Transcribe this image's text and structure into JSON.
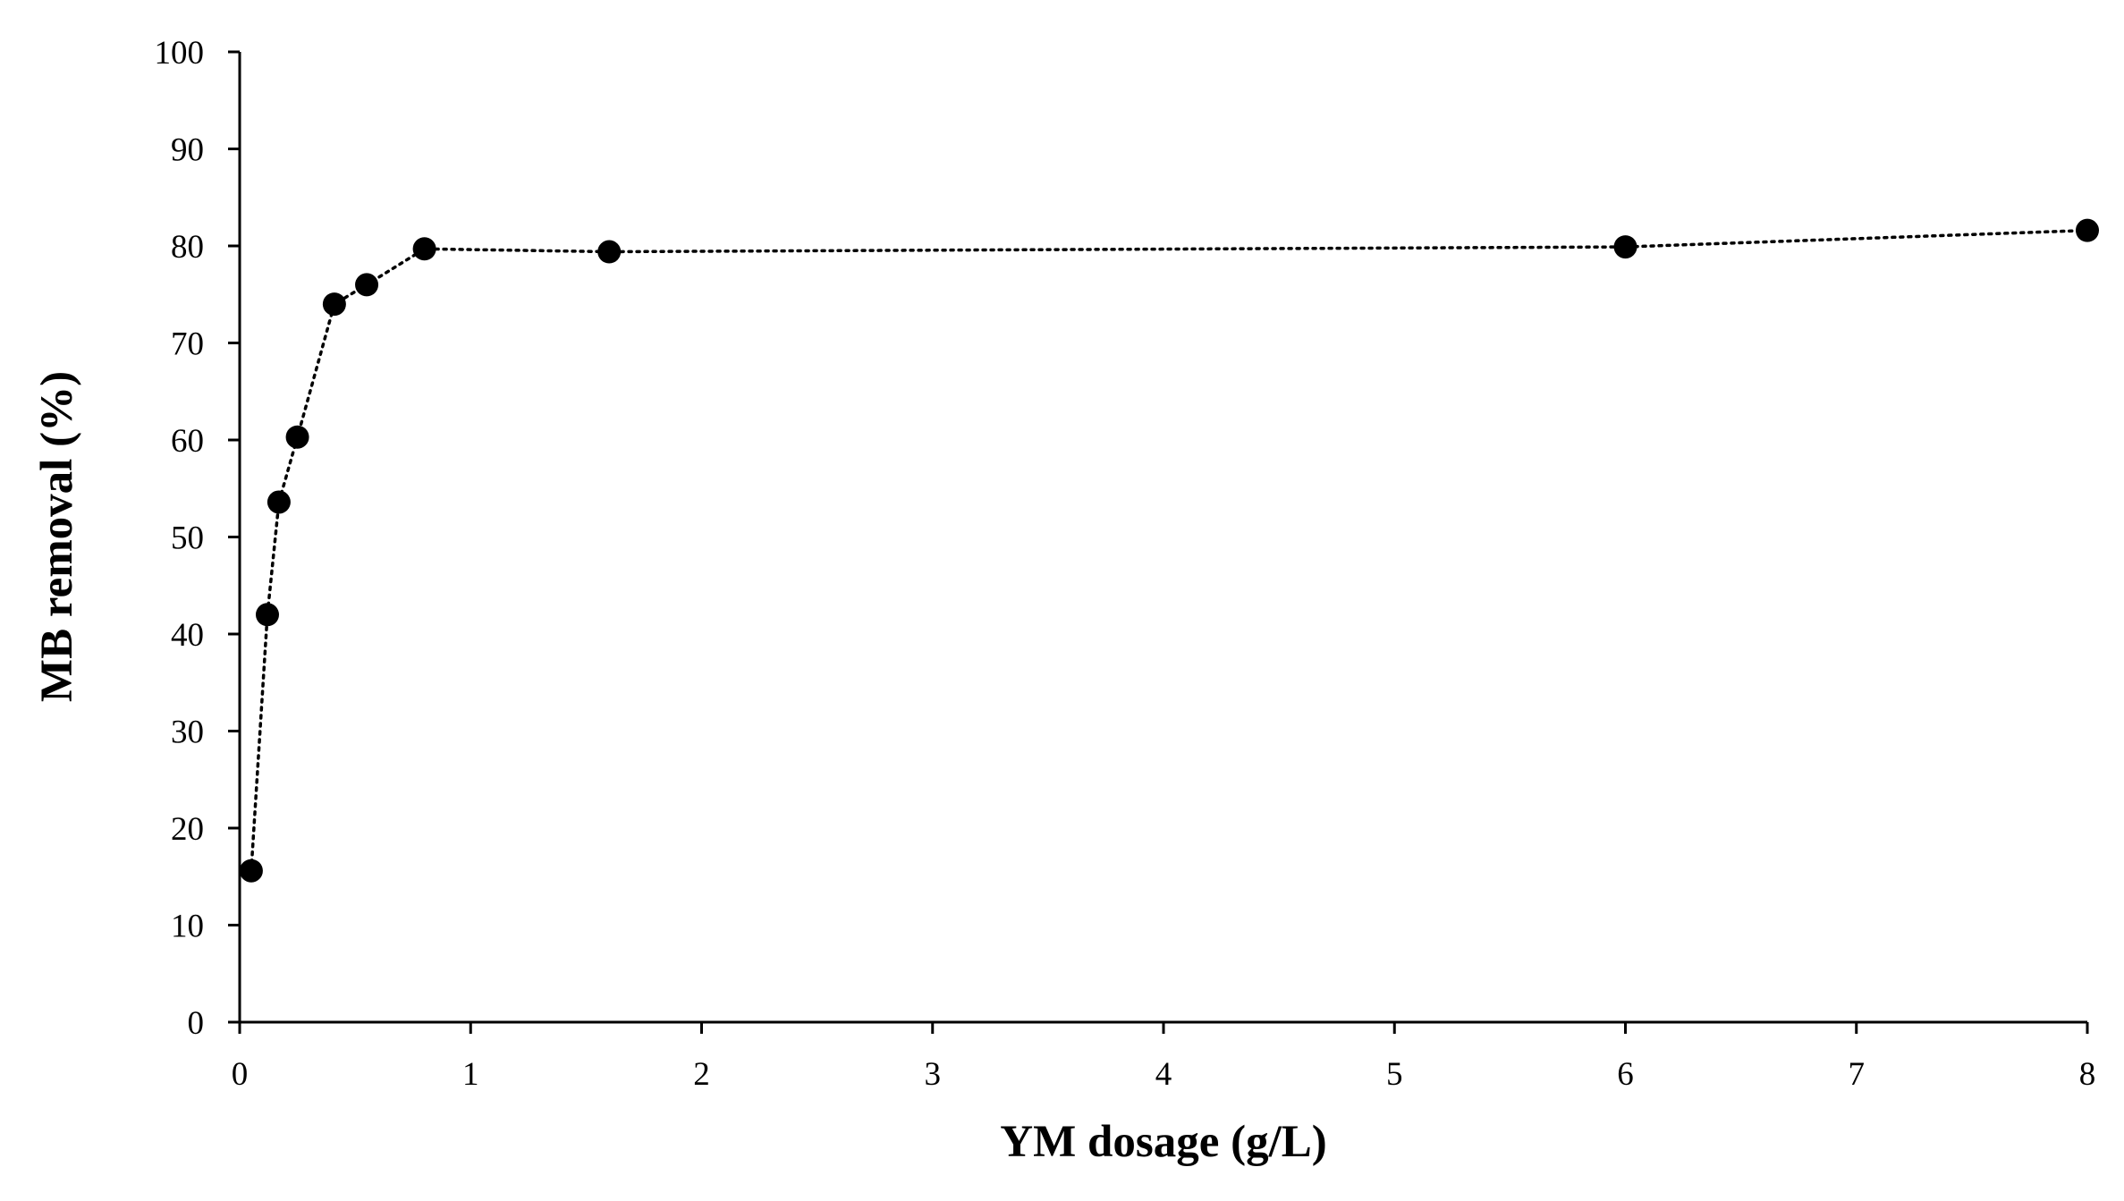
{
  "chart_data": {
    "type": "scatter",
    "title": "",
    "xlabel": "YM dosage (g/L)",
    "ylabel": "MB removal (%)",
    "xlim": [
      0,
      8
    ],
    "ylim": [
      0,
      100
    ],
    "xticks": [
      0,
      1,
      2,
      3,
      4,
      5,
      6,
      7,
      8
    ],
    "yticks": [
      0,
      10,
      20,
      30,
      40,
      50,
      60,
      70,
      80,
      90,
      100
    ],
    "grid": false,
    "legend": "none",
    "line_style": "dotted",
    "marker": "filled-circle",
    "color": "#000000",
    "series": [
      {
        "x": [
          0.05,
          0.12,
          0.17,
          0.25,
          0.41,
          0.55,
          0.8,
          1.6,
          6.0,
          8.0
        ],
        "y": [
          15.6,
          42.0,
          53.6,
          60.3,
          74.0,
          76.0,
          79.7,
          79.4,
          79.9,
          81.6
        ]
      }
    ]
  }
}
